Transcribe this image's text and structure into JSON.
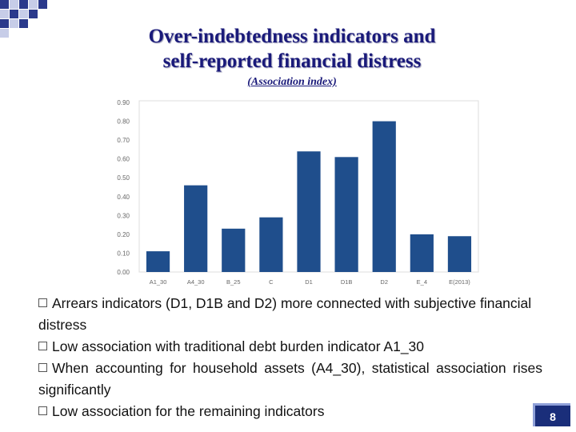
{
  "slide": {
    "title_line1": "Over-indebtedness indicators and",
    "title_line2": "self-reported financial distress",
    "subtitle": "(Association index)",
    "page_number": "8",
    "accent_color": "#1a1a7a"
  },
  "bullets": [
    "Arrears indicators (D1, D1B and D2) more connected with subjective financial distress",
    "Low association with traditional debt burden indicator A1_30",
    "When accounting for household assets (A4_30), statistical association rises significantly",
    "Low association for the remaining indicators"
  ],
  "chart_data": {
    "type": "bar",
    "categories": [
      "A1_30",
      "A4_30",
      "B_25",
      "C",
      "D1",
      "D1B",
      "D2",
      "E_4",
      "E(2013)"
    ],
    "values": [
      0.11,
      0.46,
      0.23,
      0.29,
      0.64,
      0.61,
      0.8,
      0.2,
      0.19
    ],
    "ylim": [
      0,
      0.9
    ],
    "yticks": [
      "0.00",
      "0.10",
      "0.20",
      "0.30",
      "0.40",
      "0.50",
      "0.60",
      "0.70",
      "0.80",
      "0.90"
    ],
    "bar_color": "#1f4e8c",
    "grid": false,
    "legend": "none"
  }
}
